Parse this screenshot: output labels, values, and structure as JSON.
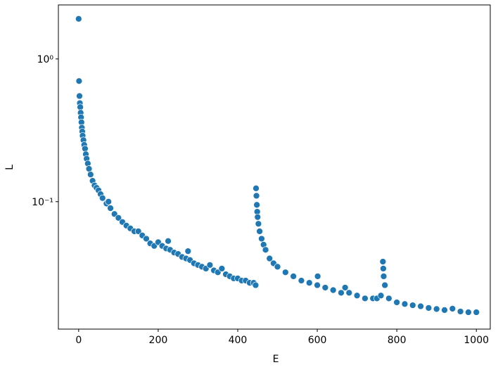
{
  "chart_data": {
    "type": "scatter",
    "x_label": "E",
    "y_label": "L",
    "x": [
      0,
      1,
      2,
      3,
      4,
      5,
      6,
      7,
      8,
      9,
      10,
      12,
      14,
      16,
      18,
      20,
      23,
      26,
      30,
      35,
      40,
      45,
      50,
      55,
      60,
      70,
      75,
      80,
      90,
      100,
      110,
      120,
      130,
      140,
      150,
      160,
      170,
      180,
      190,
      200,
      210,
      220,
      225,
      230,
      240,
      250,
      260,
      270,
      275,
      280,
      290,
      300,
      310,
      320,
      330,
      340,
      350,
      360,
      370,
      380,
      390,
      400,
      410,
      420,
      430,
      440,
      445,
      446,
      447,
      448,
      449,
      450,
      452,
      455,
      460,
      465,
      470,
      480,
      490,
      500,
      520,
      540,
      560,
      580,
      600,
      601,
      620,
      640,
      660,
      670,
      680,
      700,
      720,
      740,
      750,
      760,
      765,
      766,
      767,
      770,
      780,
      800,
      820,
      840,
      860,
      880,
      900,
      920,
      940,
      960,
      980,
      1000
    ],
    "values": [
      1.91,
      0.7,
      0.55,
      0.49,
      0.46,
      0.42,
      0.39,
      0.36,
      0.33,
      0.31,
      0.29,
      0.27,
      0.25,
      0.235,
      0.215,
      0.2,
      0.185,
      0.17,
      0.155,
      0.14,
      0.13,
      0.125,
      0.12,
      0.113,
      0.106,
      0.097,
      0.1,
      0.09,
      0.082,
      0.077,
      0.072,
      0.068,
      0.065,
      0.062,
      0.062,
      0.058,
      0.055,
      0.051,
      0.049,
      0.052,
      0.049,
      0.047,
      0.053,
      0.046,
      0.044,
      0.043,
      0.041,
      0.04,
      0.045,
      0.039,
      0.037,
      0.036,
      0.035,
      0.034,
      0.036,
      0.033,
      0.032,
      0.034,
      0.031,
      0.03,
      0.029,
      0.029,
      0.028,
      0.028,
      0.027,
      0.027,
      0.026,
      0.124,
      0.11,
      0.095,
      0.085,
      0.078,
      0.07,
      0.062,
      0.055,
      0.05,
      0.046,
      0.04,
      0.037,
      0.035,
      0.032,
      0.03,
      0.028,
      0.027,
      0.026,
      0.03,
      0.025,
      0.024,
      0.023,
      0.025,
      0.023,
      0.022,
      0.021,
      0.021,
      0.021,
      0.022,
      0.038,
      0.034,
      0.03,
      0.026,
      0.021,
      0.0197,
      0.0192,
      0.0188,
      0.0185,
      0.018,
      0.0177,
      0.0174,
      0.0178,
      0.017,
      0.0168,
      0.0168
    ],
    "color": "#1f77b4",
    "xlim": [
      -51,
      1035
    ],
    "xticks": [
      0,
      200,
      400,
      600,
      800,
      1000
    ],
    "ylim": [
      0.0128,
      2.39
    ],
    "ylog": true,
    "yticks": [
      {
        "value": 0.1,
        "label": "10⁻¹"
      },
      {
        "value": 1,
        "label": "10⁰"
      }
    ]
  }
}
